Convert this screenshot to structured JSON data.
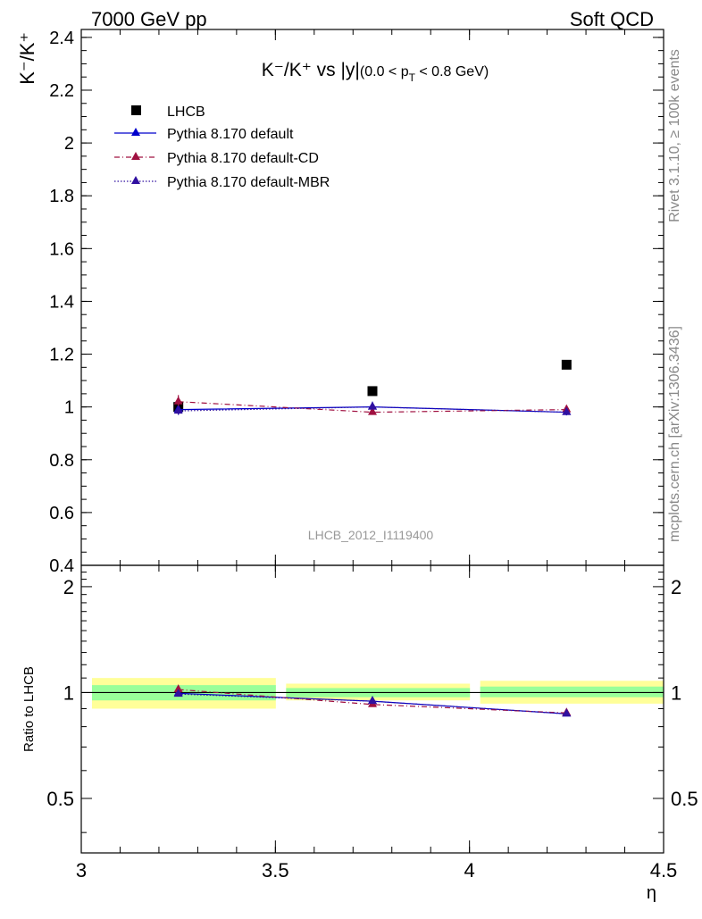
{
  "header": {
    "left": "7000 GeV pp",
    "right": "Soft QCD"
  },
  "side": {
    "rivet": "Rivet 3.1.10, ≥ 100k events",
    "mcplots": "mcplots.cern.ch [arXiv:1306.3436]"
  },
  "chart_data": [
    {
      "type": "scatter",
      "title": "K⁻/K⁺ vs |y|(0.0 < p_T < 0.8 GeV)",
      "title_main": "K⁻/K⁺ vs |y|",
      "title_range": "(0.0 < p",
      "title_sub": "T",
      "title_range_end": " < 0.8 GeV)",
      "ylabel": "K⁻/K⁺",
      "watermark": "LHCB_2012_I1119400",
      "xlim": [
        3,
        4.5
      ],
      "ylim": [
        0.4,
        2.43
      ],
      "yticks": [
        0.4,
        0.6,
        0.8,
        1,
        1.2,
        1.4,
        1.6,
        1.8,
        2,
        2.2,
        2.4
      ],
      "ytick_labels": [
        "0.4",
        "0.6",
        "0.8",
        "1",
        "1.2",
        "1.4",
        "1.6",
        "1.8",
        "2",
        "2.2",
        "2.4"
      ],
      "x": [
        3.25,
        3.75,
        4.25
      ],
      "series": [
        {
          "name": "LHCB",
          "marker": "square",
          "color": "#000000",
          "values": [
            1.0,
            1.06,
            1.16
          ]
        },
        {
          "name": "Pythia 8.170 default",
          "marker": "triangle",
          "line": "solid",
          "color": "#0000cc",
          "values": [
            0.99,
            1.0,
            0.98
          ],
          "errors": [
            0.02,
            0.02,
            0.012
          ]
        },
        {
          "name": "Pythia 8.170 default-CD",
          "marker": "triangle",
          "line": "dashdot",
          "color": "#a01040",
          "values": [
            1.02,
            0.98,
            0.99
          ],
          "errors": [
            0.025,
            0.01,
            0.012
          ]
        },
        {
          "name": "Pythia 8.170 default-MBR",
          "marker": "triangle",
          "line": "dotted",
          "color": "#3010a0",
          "values": [
            0.985,
            1.0,
            0.98
          ],
          "errors": [
            0.015,
            0.01,
            0.01
          ]
        }
      ]
    },
    {
      "type": "scatter",
      "ylabel": "Ratio to LHCB",
      "xlabel": "η",
      "xlim": [
        3,
        4.5
      ],
      "ylim": [
        0.35,
        2.3
      ],
      "yticks": [
        0.5,
        1,
        2
      ],
      "ytick_labels": [
        "0.5",
        "1",
        "2"
      ],
      "xticks": [
        3,
        3.5,
        4,
        4.5
      ],
      "xtick_labels": [
        "3",
        "3.5",
        "4",
        "4.5"
      ],
      "reference": 1,
      "bands": [
        {
          "x": [
            3.0,
            3.5
          ],
          "inner": [
            0.95,
            1.05
          ],
          "outer": [
            0.9,
            1.1
          ]
        },
        {
          "x": [
            3.5,
            4.0
          ],
          "inner": [
            0.97,
            1.03
          ],
          "outer": [
            0.95,
            1.06
          ]
        },
        {
          "x": [
            4.0,
            4.5
          ],
          "inner": [
            0.97,
            1.04
          ],
          "outer": [
            0.93,
            1.08
          ]
        }
      ],
      "band_colors": {
        "inner": "#99ff99",
        "outer": "#ffff99"
      },
      "x": [
        3.25,
        3.75,
        4.25
      ],
      "series": [
        {
          "name": "Pythia 8.170 default",
          "line": "solid",
          "color": "#0000cc",
          "values": [
            0.995,
            0.945,
            0.87
          ]
        },
        {
          "name": "Pythia 8.170 default-CD",
          "line": "dashdot",
          "color": "#a01040",
          "values": [
            1.02,
            0.925,
            0.875
          ]
        },
        {
          "name": "Pythia 8.170 default-MBR",
          "line": "dotted",
          "color": "#3010a0",
          "values": [
            0.99,
            0.945,
            0.87
          ]
        }
      ]
    }
  ]
}
